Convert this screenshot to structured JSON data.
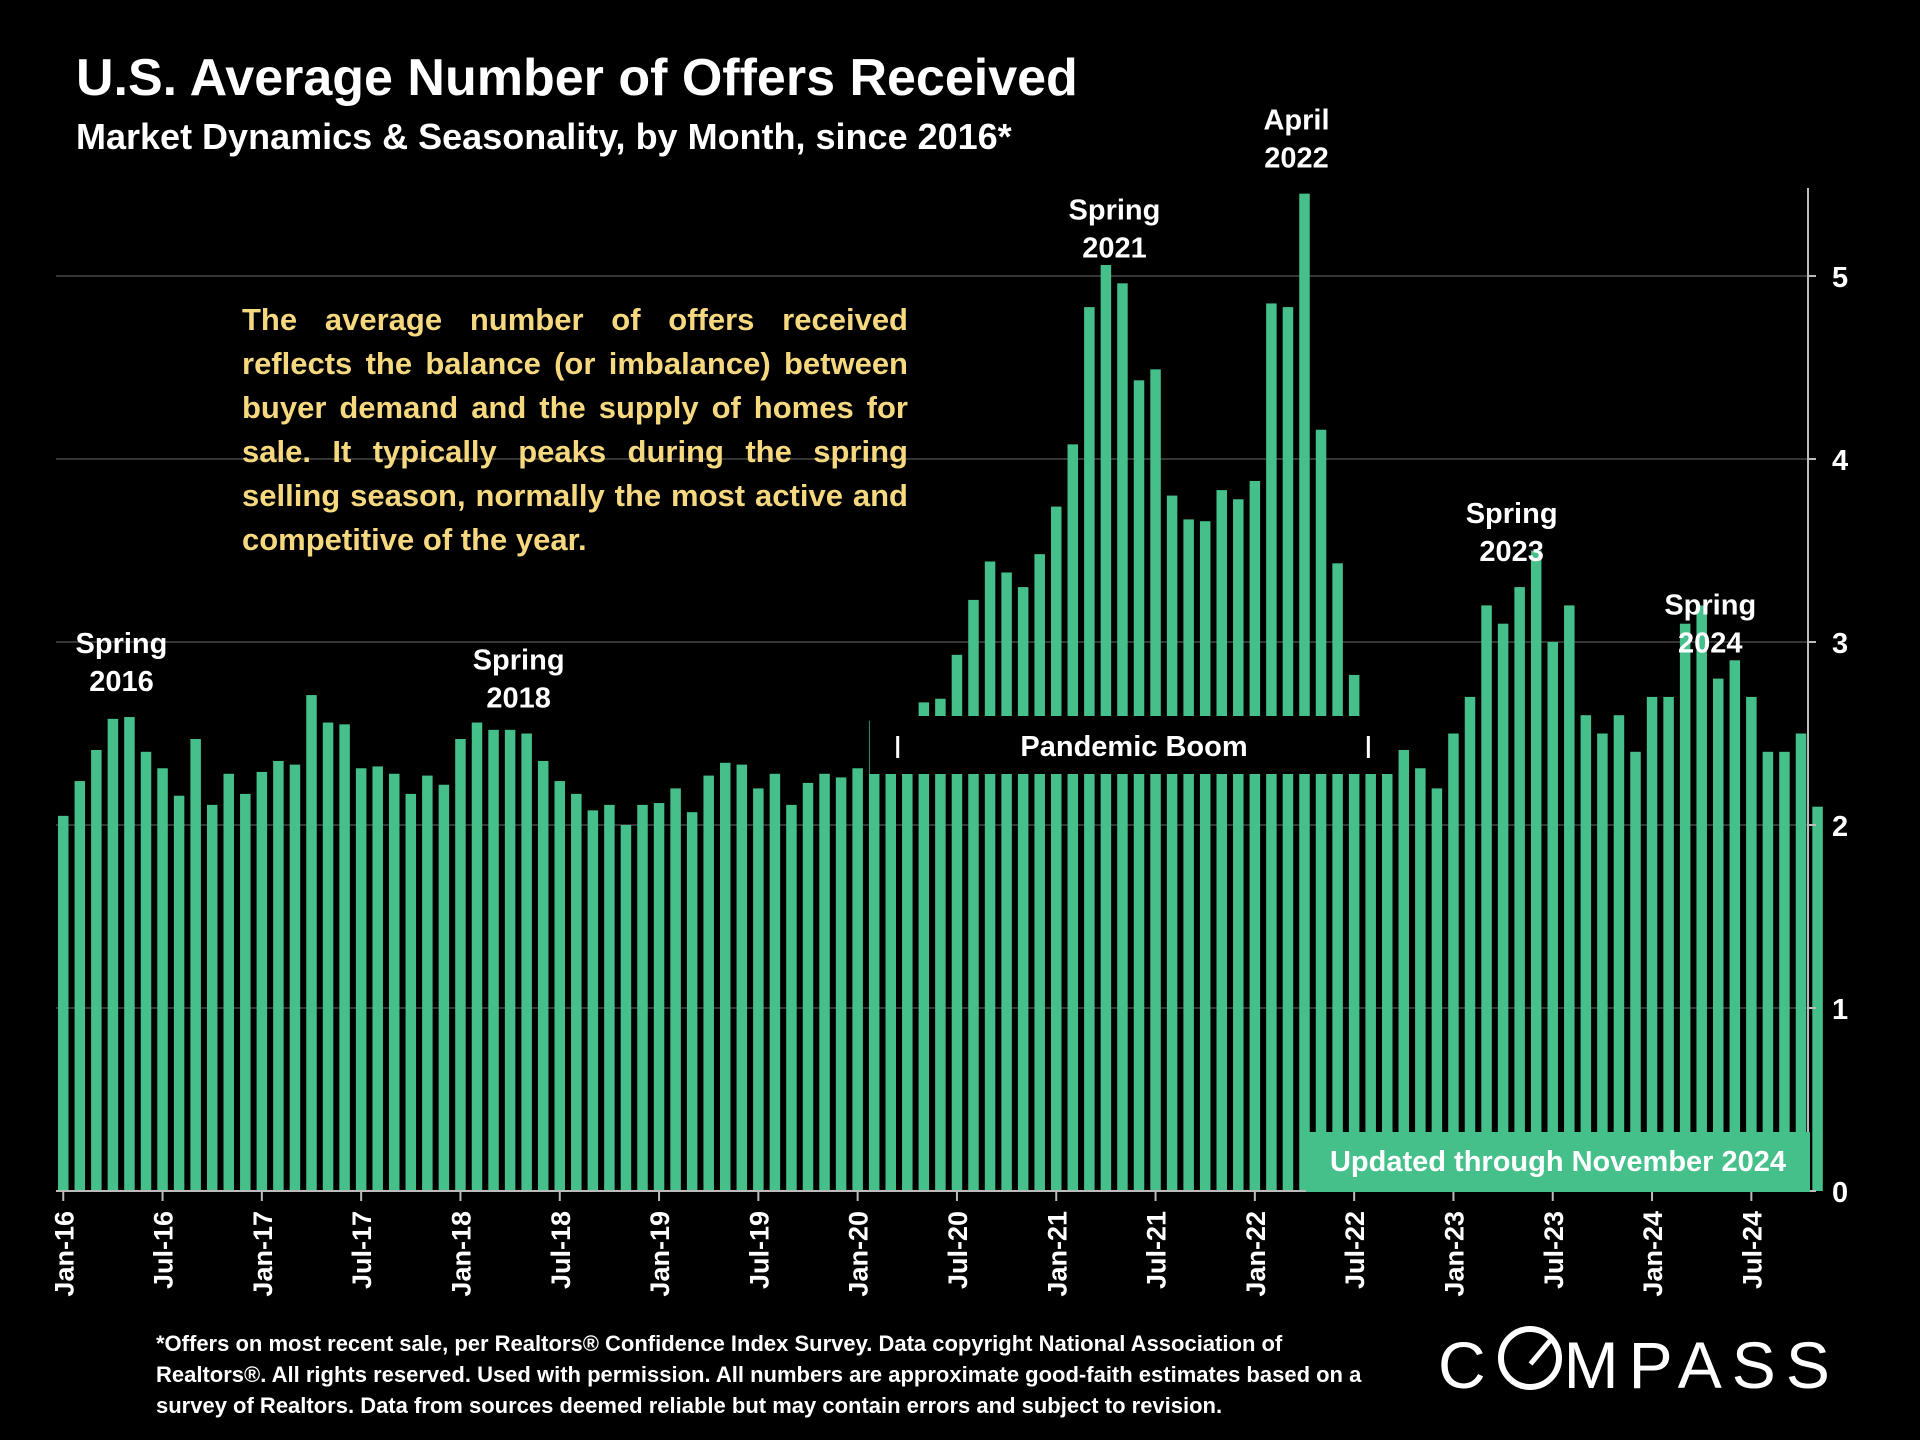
{
  "header": {
    "title": "U.S. Average Number of Offers Received",
    "subtitle": "Market Dynamics & Seasonality, by Month, since 2016*"
  },
  "callout": "The average number of offers received reflects the balance (or imbalance) between buyer demand and the supply of homes for sale. It typically peaks during the spring selling season, normally the most active and competitive of the year.",
  "updated_note": "Updated through November 2024",
  "footnote": "*Offers on most recent sale, per Realtors® Confidence Index Survey. Data copyright National Association of Realtors®. All rights reserved. Used with permission. All numbers are approximate good-faith estimates based on a survey of Realtors. Data from sources deemed reliable but may contain errors and subject to revision.",
  "logo": {
    "before": "C",
    "after": "MPASS"
  },
  "colors": {
    "background": "#000000",
    "bar": "#45c08a",
    "callout_text": "#f6d97f",
    "gridline": "#555555"
  },
  "chart_data": {
    "type": "bar",
    "start_month": "Jan-16",
    "x_tick_labels": [
      "Jan-16",
      "Jul-16",
      "Jan-17",
      "Jul-17",
      "Jan-18",
      "Jul-18",
      "Jan-19",
      "Jul-19",
      "Jan-20",
      "Jul-20",
      "Jan-21",
      "Jul-21",
      "Jan-22",
      "Jul-22",
      "Jan-23",
      "Jul-23",
      "Jan-24",
      "Jul-24"
    ],
    "y_ticks": [
      0,
      1,
      2,
      3,
      4,
      5
    ],
    "ylim": [
      0,
      5.5
    ],
    "grid": "horizontal",
    "y_axis_side": "right",
    "values": [
      2.05,
      2.24,
      2.41,
      2.58,
      2.59,
      2.4,
      2.31,
      2.16,
      2.47,
      2.11,
      2.28,
      2.17,
      2.29,
      2.35,
      2.33,
      2.71,
      2.56,
      2.55,
      2.31,
      2.32,
      2.28,
      2.17,
      2.27,
      2.22,
      2.47,
      2.56,
      2.52,
      2.52,
      2.5,
      2.35,
      2.24,
      2.17,
      2.08,
      2.11,
      2.0,
      2.11,
      2.12,
      2.2,
      2.07,
      2.27,
      2.34,
      2.33,
      2.2,
      2.28,
      2.11,
      2.23,
      2.28,
      2.26,
      2.31,
      2.57,
      2.33,
      2.48,
      2.67,
      2.69,
      2.93,
      3.23,
      3.44,
      3.38,
      3.3,
      3.48,
      3.74,
      4.08,
      4.83,
      5.06,
      4.96,
      4.43,
      4.49,
      3.8,
      3.67,
      3.66,
      3.83,
      3.78,
      3.88,
      4.85,
      4.83,
      5.45,
      4.16,
      3.43,
      2.82,
      2.5,
      2.5,
      2.41,
      2.31,
      2.2,
      2.5,
      2.7,
      3.2,
      3.1,
      3.3,
      3.5,
      3.0,
      3.2,
      2.6,
      2.5,
      2.6,
      2.4,
      2.7,
      2.7,
      3.1,
      3.2,
      2.8,
      2.9,
      2.7,
      2.4,
      2.4,
      2.5,
      2.1
    ],
    "annotations": [
      {
        "line1": "Spring",
        "line2": "2016",
        "month_index": 4
      },
      {
        "line1": "Spring",
        "line2": "2018",
        "month_index": 28
      },
      {
        "line1": "Spring",
        "line2": "2021",
        "month_index": 64
      },
      {
        "line1": "April",
        "line2": "2022",
        "month_index": 75
      },
      {
        "line1": "Spring",
        "line2": "2023",
        "month_index": 88
      },
      {
        "line1": "Spring",
        "line2": "2024",
        "month_index": 100
      }
    ],
    "range_labels": [
      {
        "label": "Pandemic Boom",
        "start_month_index": 54,
        "end_month_index": 77
      }
    ]
  }
}
